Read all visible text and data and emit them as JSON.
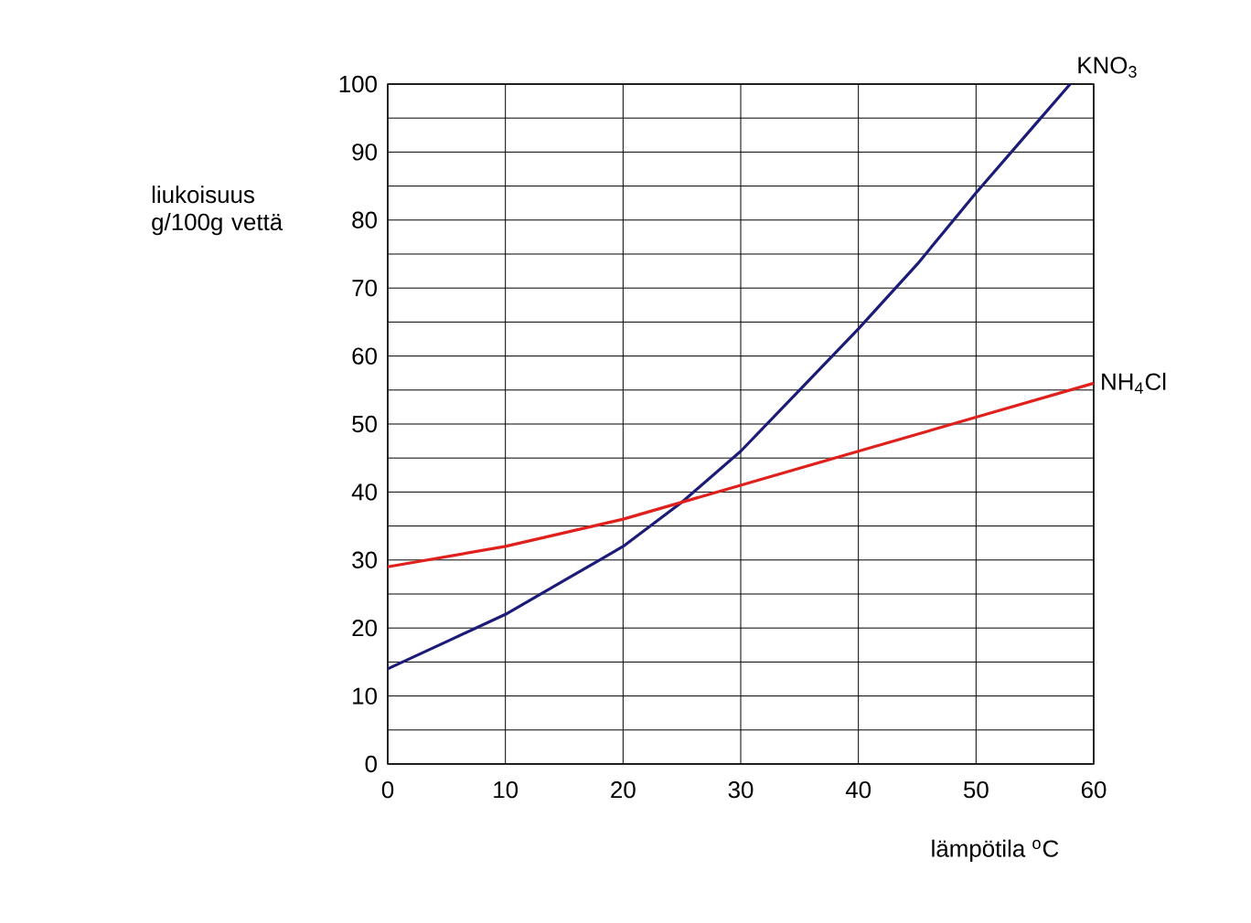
{
  "chart_data": {
    "type": "line",
    "xlabel": "lämpötila $^{o}$C",
    "ylabel": "liukoisuus g/100g vettä",
    "x": [
      0,
      5,
      10,
      15,
      18,
      20,
      25,
      30,
      35,
      40,
      45,
      50,
      55,
      58
    ],
    "series": [
      {
        "name": "KNO$_{3}$",
        "color": "#1c1c78",
        "values": [
          14,
          18,
          22,
          27,
          30,
          32,
          38.5,
          46,
          55,
          64,
          73.5,
          84,
          94,
          100
        ]
      },
      {
        "name": "NH$_{4}$Cl",
        "color": "#e0201c",
        "x": [
          0,
          10,
          20,
          30,
          40,
          50,
          60
        ],
        "values": [
          29,
          32,
          36,
          41,
          46,
          51,
          56
        ]
      }
    ],
    "xlim": [
      0,
      60
    ],
    "xticks": [
      0,
      10,
      20,
      30,
      40,
      50,
      60
    ],
    "ylim": [
      0,
      100
    ],
    "yticks": [
      0,
      {
        "value": 5,
        "label": null
      },
      10,
      {
        "value": 15,
        "label": null
      },
      20,
      {
        "value": 25,
        "label": null
      },
      30,
      {
        "value": 35,
        "label": null
      },
      40,
      {
        "value": 45,
        "label": null
      },
      50,
      {
        "value": 55,
        "label": null
      },
      60,
      {
        "value": 65,
        "label": null
      },
      70,
      {
        "value": 75,
        "label": null
      },
      80,
      {
        "value": 85,
        "label": null
      },
      90,
      {
        "value": 95,
        "label": null
      },
      100
    ],
    "grid": true,
    "marker": "none",
    "line_style": "solid"
  }
}
